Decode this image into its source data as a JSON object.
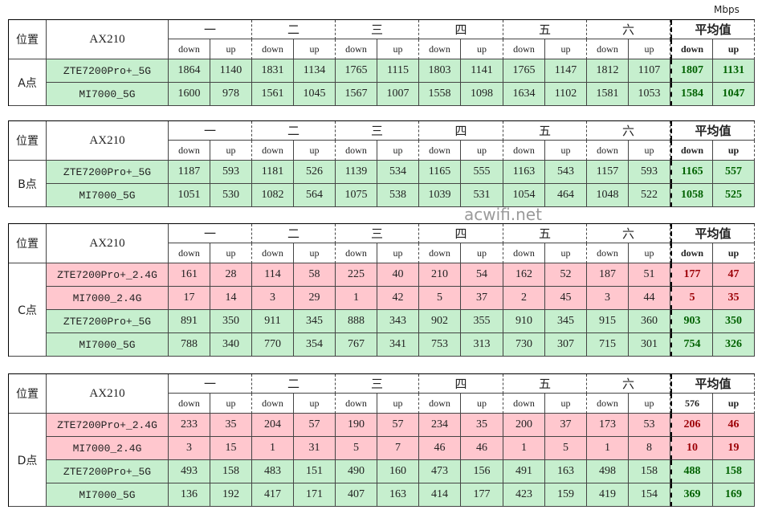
{
  "unit": "Mbps",
  "watermark": "acwifi.net",
  "tables": [
    {
      "point": "A点",
      "header": {
        "position": "位置",
        "device": "AX210",
        "groups": [
          "一",
          "二",
          "三",
          "四",
          "五",
          "六",
          "平均值"
        ],
        "sub": [
          "down",
          "up",
          "down",
          "up",
          "down",
          "up",
          "down",
          "up",
          "down",
          "up",
          "down",
          "up",
          "down",
          "up"
        ]
      },
      "rows": [
        {
          "name": "ZTE7200Pro+_5G",
          "color": "#c6efce",
          "values": [
            1864,
            1140,
            1831,
            1134,
            1765,
            1115,
            1803,
            1141,
            1765,
            1147,
            1812,
            1107,
            1807,
            1131
          ]
        },
        {
          "name": "MI7000_5G",
          "color": "#c6efce",
          "values": [
            1600,
            978,
            1561,
            1045,
            1567,
            1007,
            1558,
            1098,
            1634,
            1102,
            1581,
            1053,
            1584,
            1047
          ]
        }
      ]
    },
    {
      "point": "B点",
      "header": {
        "position": "位置",
        "device": "AX210",
        "groups": [
          "一",
          "二",
          "三",
          "四",
          "五",
          "六",
          "平均值"
        ],
        "sub": [
          "down",
          "up",
          "down",
          "up",
          "down",
          "up",
          "down",
          "up",
          "down",
          "up",
          "down",
          "up",
          "down",
          "up"
        ]
      },
      "rows": [
        {
          "name": "ZTE7200Pro+_5G",
          "color": "#c6efce",
          "values": [
            1187,
            593,
            1181,
            526,
            1139,
            534,
            1165,
            555,
            1163,
            543,
            1157,
            593,
            1165,
            557
          ]
        },
        {
          "name": "MI7000_5G",
          "color": "#c6efce",
          "values": [
            1051,
            530,
            1082,
            564,
            1075,
            538,
            1039,
            531,
            1054,
            464,
            1048,
            522,
            1058,
            525
          ]
        }
      ]
    },
    {
      "point": "C点",
      "header": {
        "position": "位置",
        "device": "AX210",
        "groups": [
          "一",
          "二",
          "三",
          "四",
          "五",
          "六",
          "平均值"
        ],
        "sub": [
          "down",
          "up",
          "down",
          "up",
          "down",
          "up",
          "down",
          "up",
          "down",
          "up",
          "down",
          "up",
          "down",
          "up"
        ]
      },
      "rows": [
        {
          "name": "ZTE7200Pro+_2.4G",
          "color": "#ffc7ce",
          "values": [
            161,
            28,
            114,
            58,
            225,
            40,
            210,
            54,
            162,
            52,
            187,
            51,
            177,
            47
          ]
        },
        {
          "name": "MI7000_2.4G",
          "color": "#ffc7ce",
          "values": [
            17,
            14,
            3,
            29,
            1,
            42,
            5,
            37,
            2,
            45,
            3,
            44,
            5,
            35
          ]
        },
        {
          "name": "ZTE7200Pro+_5G",
          "color": "#c6efce",
          "values": [
            891,
            350,
            911,
            345,
            888,
            343,
            902,
            355,
            910,
            345,
            915,
            360,
            903,
            350
          ]
        },
        {
          "name": "MI7000_5G",
          "color": "#c6efce",
          "values": [
            788,
            340,
            770,
            354,
            767,
            341,
            753,
            313,
            730,
            307,
            715,
            301,
            754,
            326
          ]
        }
      ]
    },
    {
      "point": "D点",
      "header": {
        "position": "位置",
        "device": "AX210",
        "groups": [
          "一",
          "二",
          "三",
          "四",
          "五",
          "六",
          "平均值"
        ],
        "sub": [
          "down",
          "up",
          "down",
          "up",
          "down",
          "up",
          "down",
          "up",
          "down",
          "up",
          "down",
          "up",
          "576",
          "up"
        ]
      },
      "rows": [
        {
          "name": "ZTE7200Pro+_2.4G",
          "color": "#ffc7ce",
          "values": [
            233,
            35,
            204,
            57,
            190,
            57,
            234,
            35,
            200,
            37,
            173,
            53,
            206,
            46
          ]
        },
        {
          "name": "MI7000_2.4G",
          "color": "#ffc7ce",
          "values": [
            3,
            15,
            1,
            31,
            5,
            7,
            46,
            46,
            1,
            5,
            1,
            8,
            10,
            19
          ]
        },
        {
          "name": "ZTE7200Pro+_5G",
          "color": "#c6efce",
          "values": [
            493,
            158,
            483,
            151,
            490,
            160,
            473,
            156,
            491,
            163,
            498,
            158,
            488,
            158
          ]
        },
        {
          "name": "MI7000_5G",
          "color": "#c6efce",
          "values": [
            136,
            192,
            417,
            171,
            407,
            163,
            414,
            177,
            423,
            159,
            419,
            154,
            369,
            169
          ]
        }
      ]
    }
  ]
}
